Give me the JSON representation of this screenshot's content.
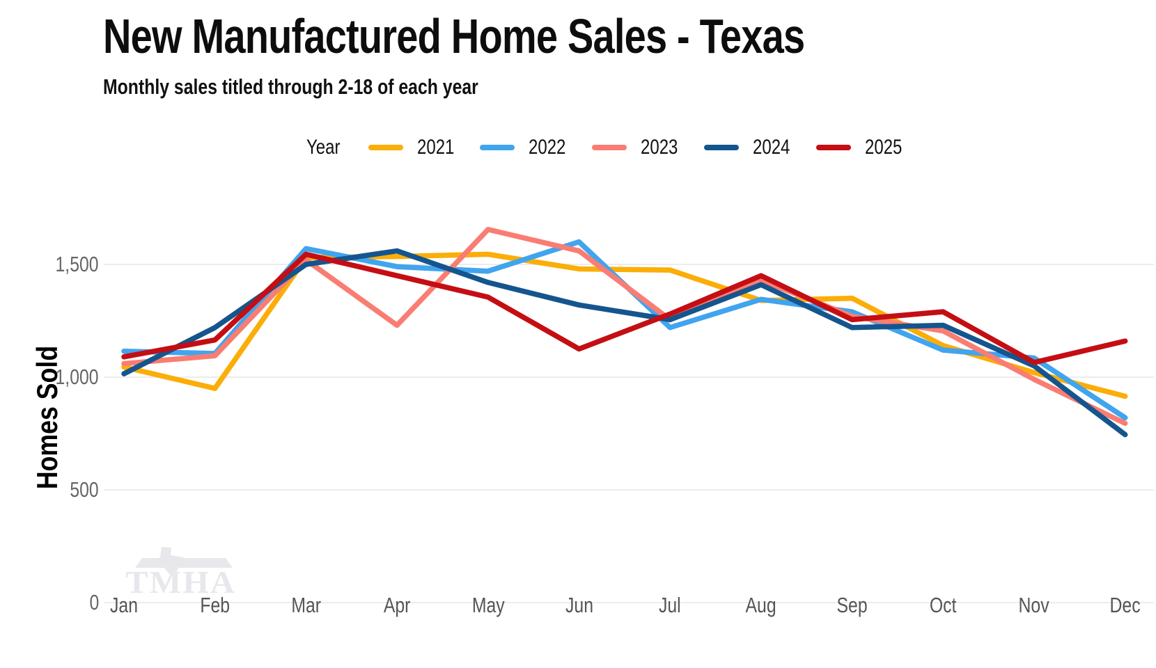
{
  "header": {
    "title": "New Manufactured Home Sales - Texas",
    "subtitle": "Monthly sales titled through 2-18 of each year"
  },
  "legend": {
    "title": "Year"
  },
  "axes": {
    "y_label": "Homes Sold",
    "y_ticks": [
      {
        "label": "0",
        "value": 0
      },
      {
        "label": "500",
        "value": 500
      },
      {
        "label": "1,000",
        "value": 1000
      },
      {
        "label": "1,500",
        "value": 1500
      }
    ]
  },
  "watermark": {
    "text": "TMHA"
  },
  "colors": {
    "grid": "#ececec",
    "tick_text": "#5a5a5a",
    "title_text": "#0d0d0d",
    "watermark": "#e8e8ec"
  },
  "chart_data": {
    "type": "line",
    "title": "New Manufactured Home Sales - Texas",
    "subtitle": "Monthly sales titled through 2-18 of each year",
    "xlabel": "",
    "ylabel": "Homes Sold",
    "categories": [
      "Jan",
      "Feb",
      "Mar",
      "Apr",
      "May",
      "Jun",
      "Jul",
      "Aug",
      "Sep",
      "Oct",
      "Nov",
      "Dec"
    ],
    "series": [
      {
        "name": "2021",
        "color": "#FBAD08",
        "values": [
          1045,
          950,
          1530,
          1535,
          1545,
          1480,
          1475,
          1340,
          1350,
          1140,
          1020,
          915
        ]
      },
      {
        "name": "2022",
        "color": "#41A4EE",
        "values": [
          1115,
          1105,
          1570,
          1490,
          1470,
          1600,
          1220,
          1345,
          1290,
          1120,
          1085,
          820
        ]
      },
      {
        "name": "2023",
        "color": "#F97D73",
        "values": [
          1060,
          1095,
          1520,
          1230,
          1655,
          1560,
          1255,
          1430,
          1270,
          1205,
          990,
          795
        ]
      },
      {
        "name": "2024",
        "color": "#14558E",
        "values": [
          1015,
          1220,
          1500,
          1560,
          1420,
          1320,
          1255,
          1410,
          1220,
          1230,
          1050,
          745
        ]
      },
      {
        "name": "2025",
        "color": "#C40E13",
        "values": [
          1090,
          1165,
          1545,
          1450,
          1355,
          1125,
          1280,
          1450,
          1255,
          1290,
          1065,
          1160
        ]
      }
    ],
    "ylim": [
      0,
      1750
    ],
    "grid": "horizontal",
    "legend_position": "top"
  }
}
